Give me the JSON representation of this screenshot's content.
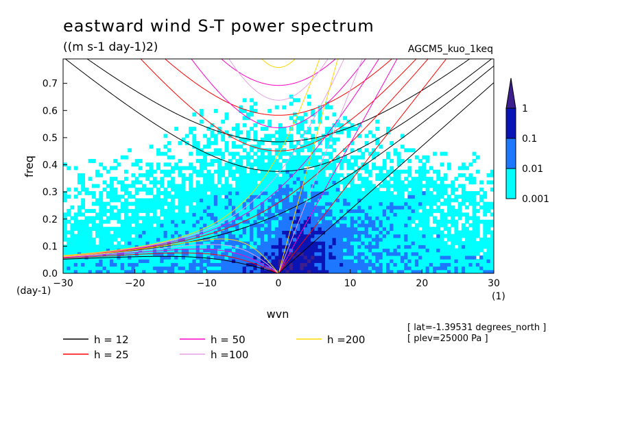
{
  "chart_data": {
    "type": "heatmap",
    "title": "eastward wind S-T power spectrum",
    "units": "((m s-1 day-1)2)",
    "run_label": "AGCM5_kuo_1keq",
    "xlabel": "wvn",
    "ylabel": "freq",
    "x_unit": "(1)",
    "y_unit": "(day-1)",
    "xlim": [
      -30,
      30
    ],
    "ylim": [
      0,
      0.79
    ],
    "xticks": [
      -30,
      -20,
      -10,
      0,
      10,
      20,
      30
    ],
    "yticks": [
      0.0,
      0.1,
      0.2,
      0.3,
      0.4,
      0.5,
      0.6,
      0.7
    ],
    "ytick_labels": [
      "0.0",
      "0.1",
      "0.2",
      "0.3",
      "0.4",
      "0.5",
      "0.6",
      "0.7"
    ],
    "colorbar": {
      "levels": [
        0.001,
        0.01,
        0.1,
        1
      ],
      "labels": [
        "0.001",
        "0.01",
        "0.1",
        "1"
      ],
      "colors": [
        "#00ffff",
        "#1e78ff",
        "#0a14b4",
        "#3c1e8c"
      ]
    },
    "dispersion_curves": [
      {
        "name": "h = 12",
        "h": 12,
        "color": "#000000"
      },
      {
        "name": "h = 25",
        "h": 25,
        "color": "#ff0000"
      },
      {
        "name": "h = 50",
        "h": 50,
        "color": "#ff00c8"
      },
      {
        "name": "h =100",
        "h": 100,
        "color": "#e6a0e6"
      },
      {
        "name": "h =200",
        "h": 200,
        "color": "#ffd700"
      }
    ],
    "info": [
      "[ lat=-1.39531 degrees_north ]",
      "[ plev=25000 Pa ]"
    ]
  }
}
